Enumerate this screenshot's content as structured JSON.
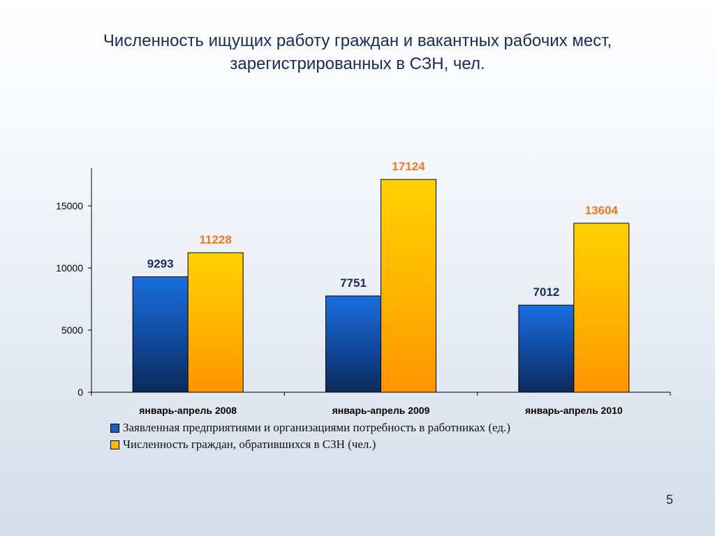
{
  "slide": {
    "title_line1": "Численность ищущих работу граждан и вакантных рабочих мест,",
    "title_line2": "зарегистрированных в СЗН, чел.",
    "page_number": "5"
  },
  "chart_data": {
    "type": "bar",
    "categories": [
      "январь-апрель 2008",
      "январь-апрель 2009",
      "январь-апрель 2010"
    ],
    "series": [
      {
        "name": "Заявленная предприятиями и организациями потребность в работниках  (ед.)",
        "values": [
          9293,
          7751,
          7012
        ],
        "color": "#1560c8",
        "label_color": "#1a2a5a"
      },
      {
        "name": "Численность граждан, обратившихся в СЗН (чел.)",
        "values": [
          11228,
          17124,
          13604
        ],
        "color": "#ffb000",
        "label_color": "#f07820"
      }
    ],
    "y_ticks": [
      0,
      5000,
      10000,
      15000
    ],
    "ylim": [
      0,
      18000
    ],
    "grid": false,
    "legend_position": "bottom-left"
  }
}
